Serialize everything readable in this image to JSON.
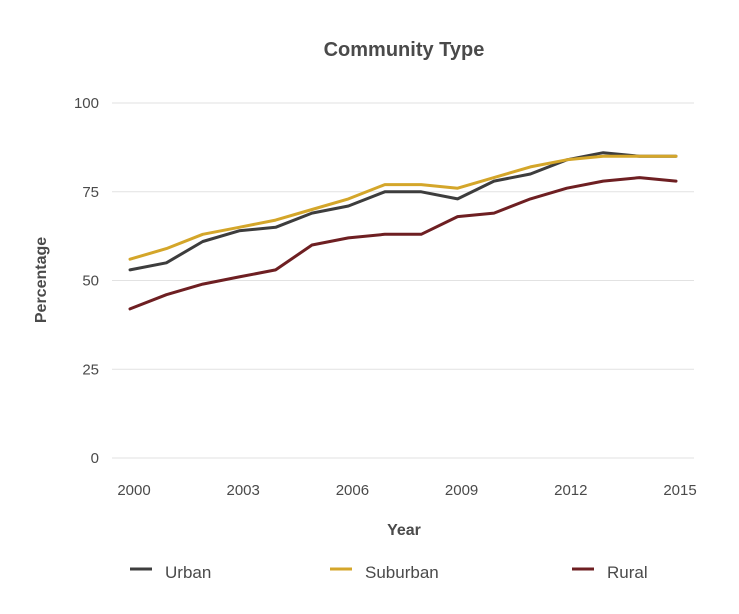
{
  "chart_data": {
    "type": "line",
    "title": "Community Type",
    "xlabel": "Year",
    "ylabel": "Percentage",
    "x": [
      2000,
      2001,
      2002,
      2003,
      2004,
      2005,
      2006,
      2007,
      2008,
      2009,
      2010,
      2011,
      2012,
      2013,
      2014,
      2015
    ],
    "x_ticks": [
      2000,
      2003,
      2006,
      2009,
      2012,
      2015
    ],
    "y_ticks": [
      0,
      25,
      50,
      75,
      100
    ],
    "ylim": [
      0,
      100
    ],
    "grid": "horizontal",
    "legend_position": "bottom",
    "series": [
      {
        "name": "Urban",
        "color": "#3d3d3d",
        "values": [
          53,
          55,
          61,
          64,
          65,
          69,
          71,
          75,
          75,
          73,
          78,
          80,
          84,
          86,
          85,
          85
        ]
      },
      {
        "name": "Suburban",
        "color": "#d4a62a",
        "values": [
          56,
          59,
          63,
          65,
          67,
          70,
          73,
          77,
          77,
          76,
          79,
          82,
          84,
          85,
          85,
          85
        ]
      },
      {
        "name": "Rural",
        "color": "#6e1f22",
        "values": [
          42,
          46,
          49,
          51,
          53,
          60,
          62,
          63,
          63,
          68,
          69,
          73,
          76,
          78,
          79,
          78
        ]
      }
    ]
  }
}
